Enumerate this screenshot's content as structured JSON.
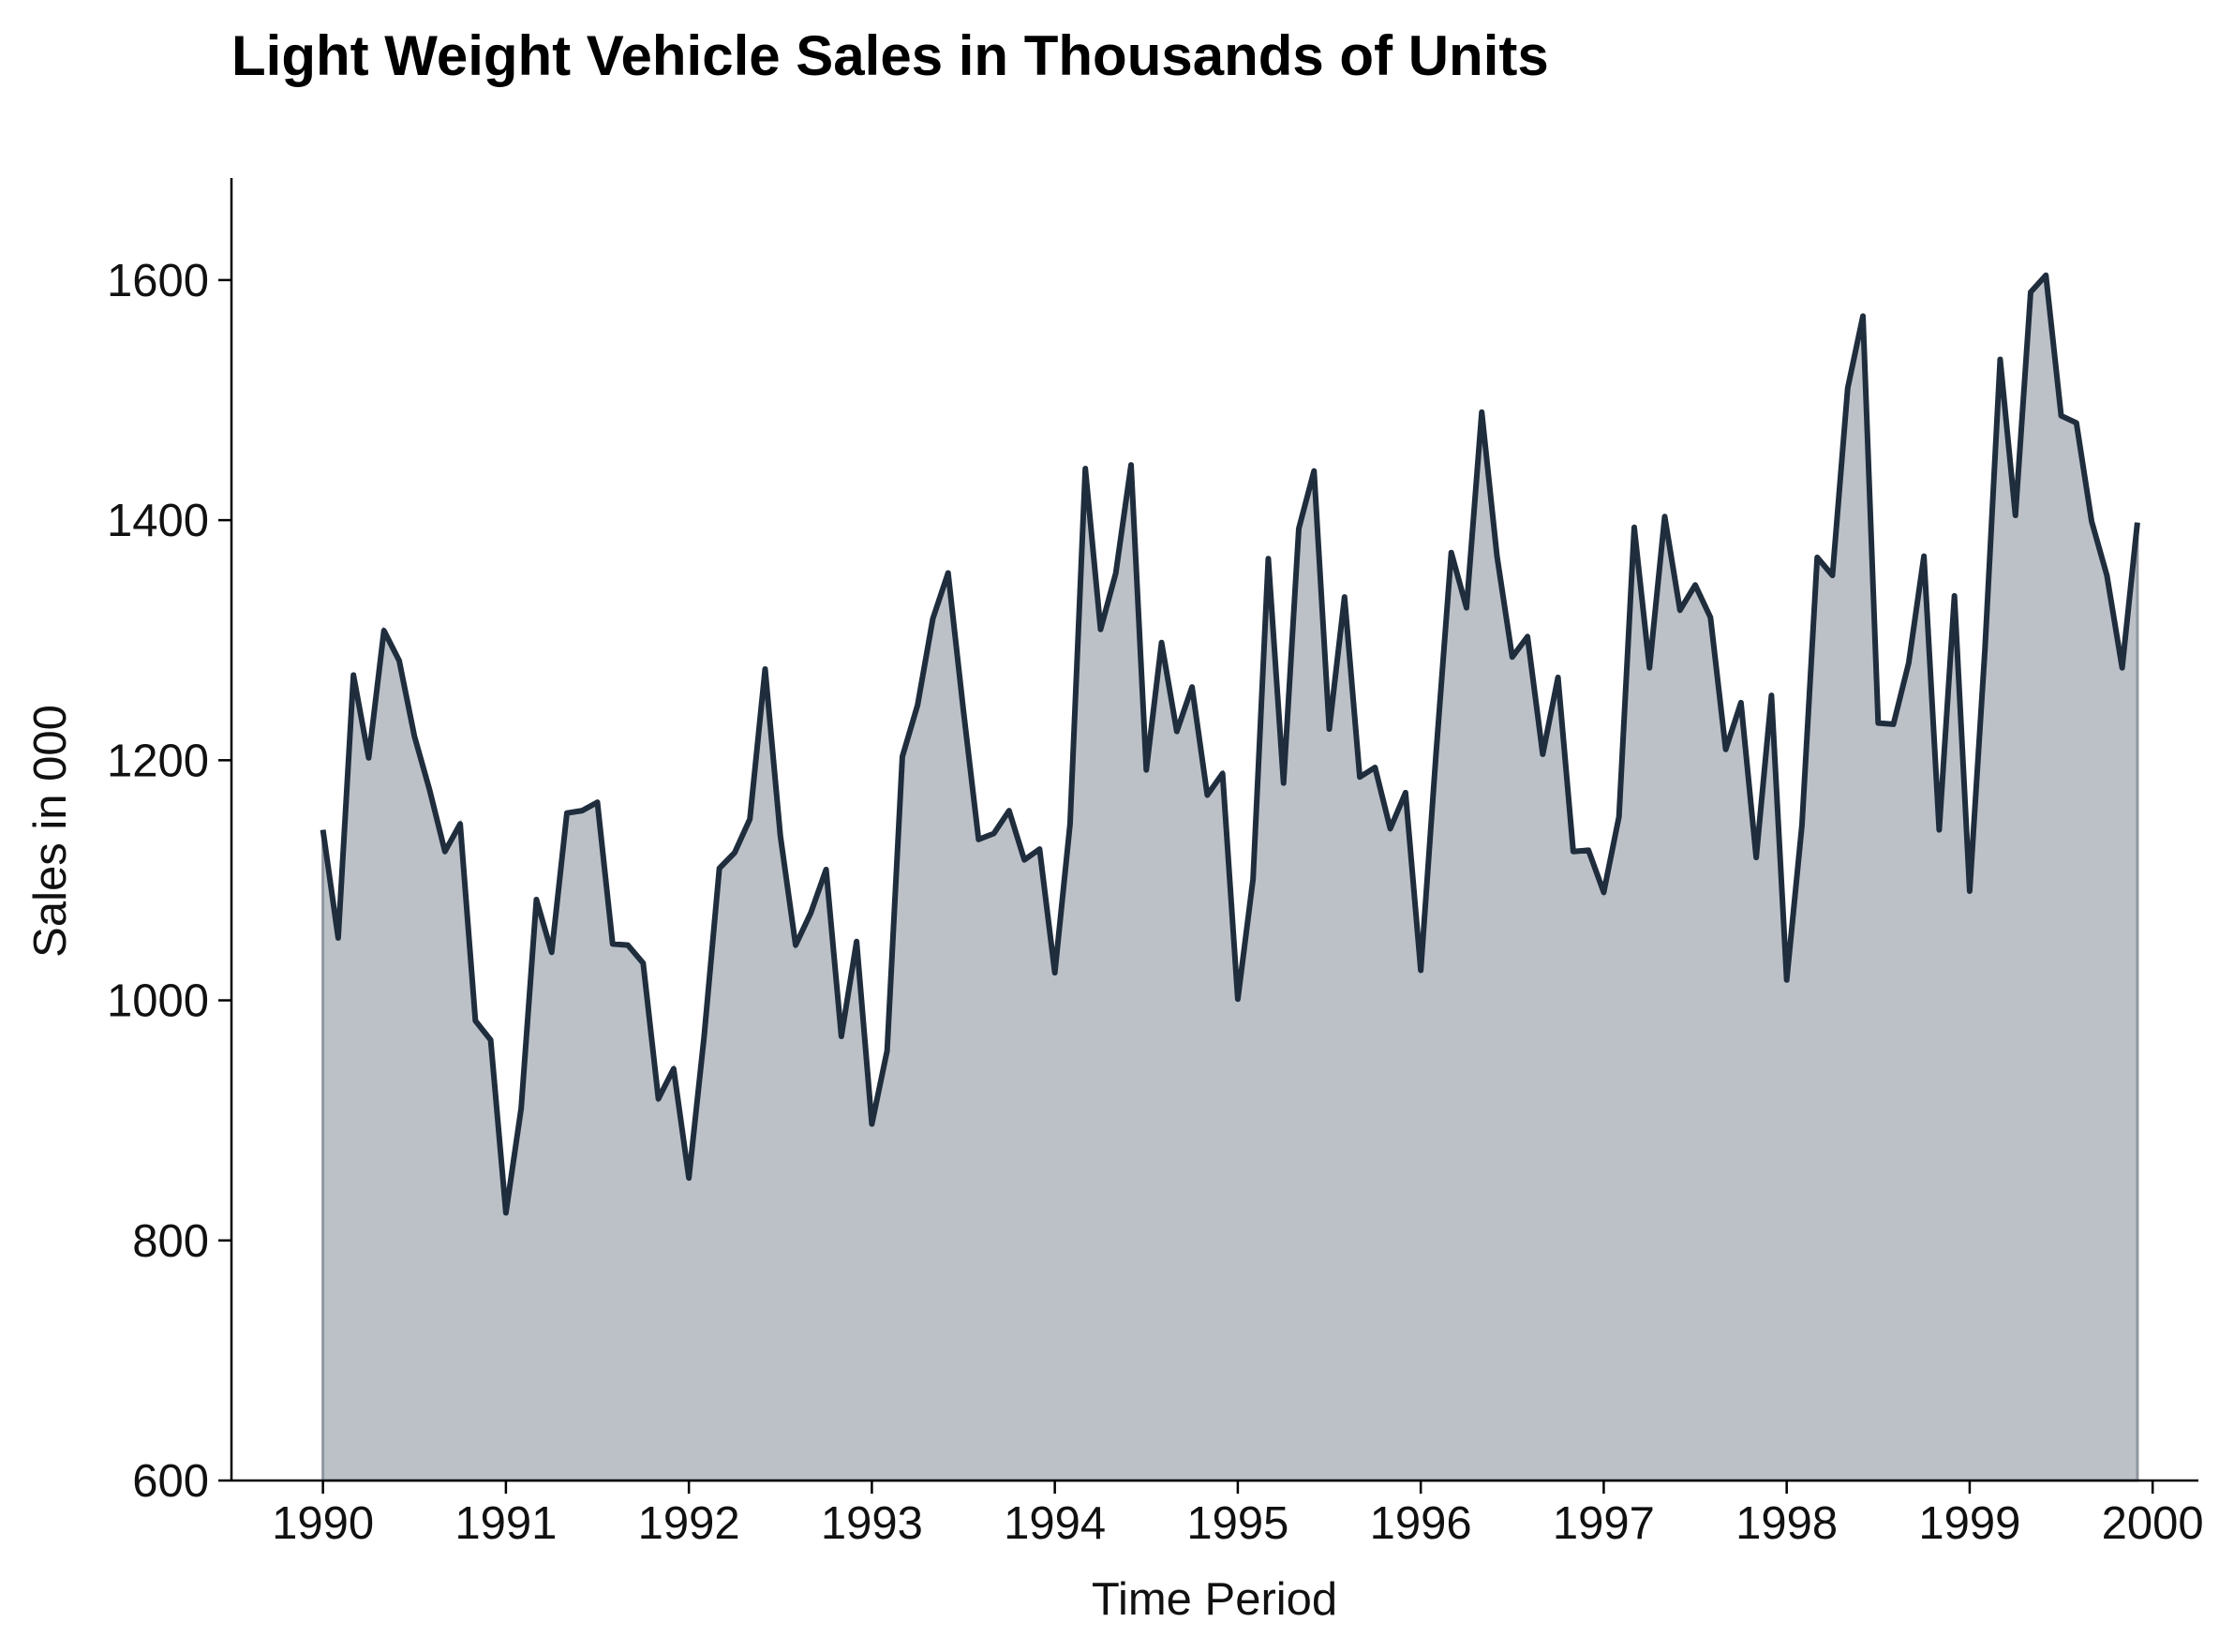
{
  "chart_data": {
    "type": "area",
    "title": "Light Weight Vehicle Sales in Thousands of Units",
    "xlabel": "Time Period",
    "ylabel": "Sales in 000",
    "xlim": [
      1989.5,
      2000.25
    ],
    "ylim": [
      600,
      1685
    ],
    "x_ticks": [
      1990,
      1991,
      1992,
      1993,
      1994,
      1995,
      1996,
      1997,
      1998,
      1999,
      2000
    ],
    "x_tick_labels": [
      "1990",
      "1991",
      "1992",
      "1993",
      "1994",
      "1995",
      "1996",
      "1997",
      "1998",
      "1999",
      "2000"
    ],
    "y_ticks": [
      600,
      800,
      1000,
      1200,
      1400,
      1600
    ],
    "y_tick_labels": [
      "600",
      "800",
      "1000",
      "1200",
      "1400",
      "1600"
    ],
    "grid": false,
    "frequency": "monthly",
    "start": "1990-01",
    "end": "1999-12",
    "colors": {
      "line": "#1f2d3d",
      "fill": "#bcc1c8",
      "fill_edge": "#8f96a0",
      "axis": "#000000"
    },
    "series": [
      {
        "values": [
          1142,
          1052,
          1271,
          1202,
          1308,
          1283,
          1220,
          1175,
          1124,
          1147,
          983,
          967,
          823,
          910,
          1084,
          1040,
          1156,
          1158,
          1165,
          1047,
          1046,
          1031,
          918,
          943,
          852,
          970,
          1110,
          1123,
          1151,
          1276,
          1137,
          1046,
          1073,
          1109,
          970,
          1049,
          897,
          958,
          1203,
          1246,
          1318,
          1356,
          1242,
          1134,
          1139,
          1158,
          1117,
          1126,
          1023,
          1147,
          1443,
          1309,
          1356,
          1446,
          1192,
          1298,
          1224,
          1261,
          1171,
          1189,
          1001,
          1101,
          1368,
          1181,
          1393,
          1441,
          1226,
          1336,
          1186,
          1194,
          1143,
          1173,
          1025,
          1205,
          1373,
          1327,
          1490,
          1370,
          1286,
          1303,
          1205,
          1269,
          1124,
          1125,
          1090,
          1153,
          1394,
          1277,
          1403,
          1325,
          1346,
          1319,
          1209,
          1248,
          1119,
          1254,
          1017,
          1146,
          1369,
          1354,
          1510,
          1570,
          1231,
          1230,
          1281,
          1370,
          1142,
          1337,
          1091,
          1292,
          1534,
          1404,
          1590,
          1604,
          1487,
          1481,
          1399,
          1354,
          1277,
          1398
        ]
      }
    ]
  }
}
